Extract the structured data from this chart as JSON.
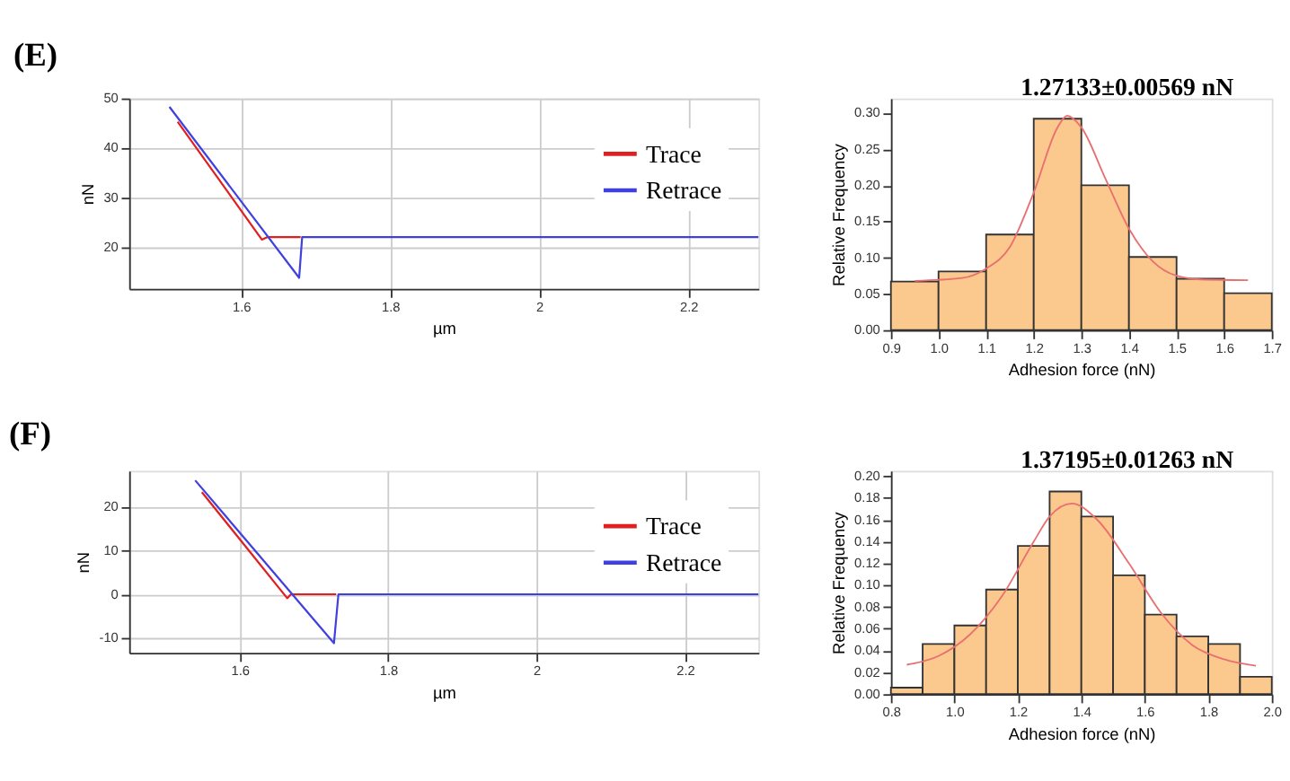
{
  "chart_data": [
    {
      "type": "line",
      "title": "(E)",
      "xlabel": "µm",
      "ylabel": "nN",
      "xlim": [
        1.45,
        2.294
      ],
      "ylim": [
        11.6,
        50
      ],
      "xticks": [
        1.6,
        1.8,
        2,
        2.2
      ],
      "yticks": [
        20,
        30,
        40,
        50
      ],
      "grid": true,
      "legend": "top right",
      "line_style": "solid",
      "marker": "none",
      "series": [
        {
          "name": "Trace",
          "color": "#e02020",
          "x": [
            1.515,
            1.628,
            1.635,
            1.68
          ],
          "values": [
            45.3,
            21.5,
            22,
            22
          ]
        },
        {
          "name": "Retrace",
          "color": "#4040e0",
          "x": [
            1.504,
            1.678,
            1.682,
            2.294
          ],
          "values": [
            48.3,
            13.8,
            22,
            22
          ]
        }
      ]
    },
    {
      "type": "histogram",
      "xlabel": "Adhesion force (nN)",
      "ylabel": "Relative Frequency",
      "annotations": [
        "1.27133±0.00569 nN"
      ],
      "color": "#fbc88e",
      "xlim": [
        0.9,
        1.7
      ],
      "ylim": [
        0,
        0.32
      ],
      "xticks": [
        {
          "value": 0.9,
          "label": "0.9"
        },
        {
          "value": 1,
          "label": "1.0"
        },
        {
          "value": 1.1,
          "label": "1.1"
        },
        {
          "value": 1.2,
          "label": "1.2"
        },
        {
          "value": 1.3,
          "label": "1.3"
        },
        {
          "value": 1.4,
          "label": "1.4"
        },
        {
          "value": 1.5,
          "label": "1.5"
        },
        {
          "value": 1.6,
          "label": "1.6"
        },
        {
          "value": 1.7,
          "label": "1.7"
        }
      ],
      "yticks": [
        {
          "value": 0,
          "label": "0.00"
        },
        {
          "value": 0.05,
          "label": "0.05"
        },
        {
          "value": 0.1,
          "label": "0.10"
        },
        {
          "value": 0.15,
          "label": "0.15"
        },
        {
          "value": 0.2,
          "label": "0.20"
        },
        {
          "value": 0.25,
          "label": "0.25"
        },
        {
          "value": 0.3,
          "label": "0.30"
        }
      ],
      "bins": [
        0.9,
        1.0,
        1.1,
        1.2,
        1.3,
        1.4,
        1.5,
        1.6,
        1.7
      ],
      "values": [
        0.067,
        0.081,
        0.132,
        0.292,
        0.2,
        0.101,
        0.071,
        0.051
      ],
      "series": [
        {
          "type": "line",
          "color": "#e87070",
          "x": [
            0.95,
            1.05,
            1.1,
            1.15,
            1.2,
            1.25,
            1.27,
            1.3,
            1.35,
            1.4,
            1.45,
            1.5,
            1.55,
            1.65
          ],
          "values": [
            0.068,
            0.072,
            0.085,
            0.115,
            0.19,
            0.28,
            0.296,
            0.28,
            0.21,
            0.14,
            0.095,
            0.075,
            0.07,
            0.069
          ]
        }
      ]
    },
    {
      "type": "line",
      "title": "(F)",
      "xlabel": "µm",
      "ylabel": "nN",
      "xlim": [
        1.451,
        2.299
      ],
      "ylim": [
        -13.4,
        28.3
      ],
      "xticks": [
        1.6,
        1.8,
        2,
        2.2
      ],
      "yticks": [
        -10,
        0,
        10,
        20
      ],
      "grid": true,
      "legend": "top right",
      "line_style": "solid",
      "marker": "none",
      "series": [
        {
          "name": "Trace",
          "color": "#e02020",
          "x": [
            1.549,
            1.664,
            1.669,
            1.73
          ],
          "values": [
            23.4,
            -0.9,
            0,
            0
          ]
        },
        {
          "name": "Retrace",
          "color": "#4040e0",
          "x": [
            1.54,
            1.727,
            1.733,
            2.299
          ],
          "values": [
            26.1,
            -11.2,
            0,
            0
          ]
        }
      ]
    },
    {
      "type": "histogram",
      "xlabel": "Adhesion force (nN)",
      "ylabel": "Relative Frequency",
      "annotations": [
        "1.37195±0.01263 nN"
      ],
      "color": "#fbc88e",
      "xlim": [
        0.8,
        2.0
      ],
      "ylim": [
        0,
        0.205
      ],
      "xticks": [
        {
          "value": 0.8,
          "label": "0.8"
        },
        {
          "value": 1,
          "label": "1.0"
        },
        {
          "value": 1.2,
          "label": "1.2"
        },
        {
          "value": 1.4,
          "label": "1.4"
        },
        {
          "value": 1.6,
          "label": "1.6"
        },
        {
          "value": 1.8,
          "label": "1.8"
        },
        {
          "value": 2,
          "label": "2.0"
        }
      ],
      "yticks": [
        {
          "value": 0,
          "label": "0.00"
        },
        {
          "value": 0.02,
          "label": "0.02"
        },
        {
          "value": 0.04,
          "label": "0.04"
        },
        {
          "value": 0.06,
          "label": "0.06"
        },
        {
          "value": 0.08,
          "label": "0.08"
        },
        {
          "value": 0.1,
          "label": "0.10"
        },
        {
          "value": 0.12,
          "label": "0.12"
        },
        {
          "value": 0.14,
          "label": "0.14"
        },
        {
          "value": 0.16,
          "label": "0.16"
        },
        {
          "value": 0.18,
          "label": "0.18"
        },
        {
          "value": 0.2,
          "label": "0.20"
        }
      ],
      "bins": [
        0.8,
        0.9,
        1.0,
        1.1,
        1.2,
        1.3,
        1.4,
        1.5,
        1.6,
        1.7,
        1.8,
        1.9,
        2.0
      ],
      "values": [
        0.006,
        0.046,
        0.063,
        0.096,
        0.136,
        0.186,
        0.163,
        0.109,
        0.073,
        0.053,
        0.046,
        0.016
      ],
      "series": [
        {
          "type": "line",
          "color": "#e87070",
          "x": [
            0.85,
            0.95,
            1.05,
            1.15,
            1.25,
            1.3,
            1.37,
            1.45,
            1.55,
            1.65,
            1.75,
            1.85,
            1.95
          ],
          "values": [
            0.027,
            0.035,
            0.055,
            0.09,
            0.14,
            0.163,
            0.175,
            0.16,
            0.12,
            0.075,
            0.045,
            0.032,
            0.026
          ]
        }
      ]
    }
  ]
}
